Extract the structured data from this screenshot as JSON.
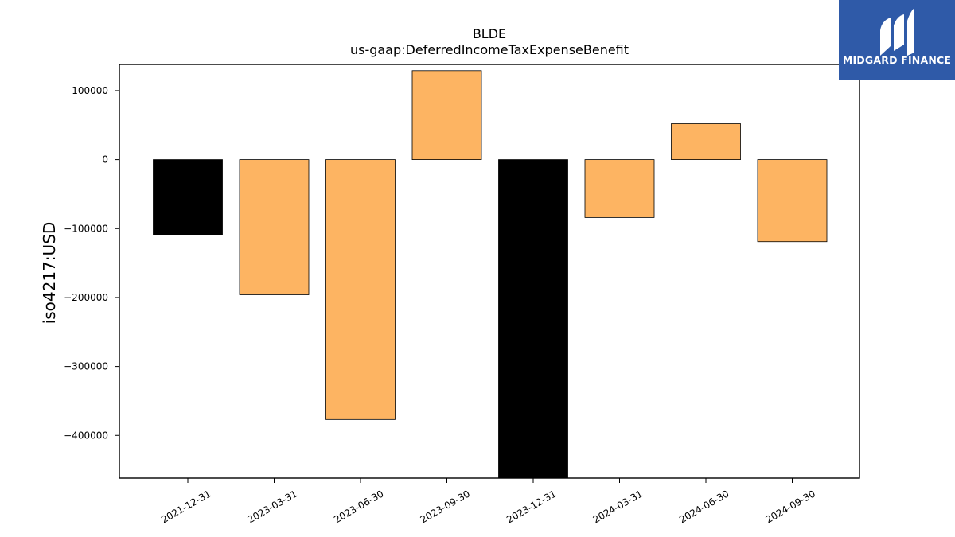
{
  "chart_data": {
    "type": "bar",
    "title": "BLDE",
    "subtitle": "us-gaap:DeferredIncomeTaxExpenseBenefit",
    "xlabel": "",
    "ylabel": "iso4217:USD",
    "categories": [
      "2021-12-31",
      "2023-03-31",
      "2023-06-30",
      "2023-09-30",
      "2023-12-31",
      "2024-03-31",
      "2024-06-30",
      "2024-09-30"
    ],
    "values": [
      -109000,
      -196000,
      -377000,
      129000,
      -465000,
      -84000,
      52000,
      -119000
    ],
    "bar_colors": [
      "#000000",
      "#fdb462",
      "#fdb462",
      "#fdb462",
      "#000000",
      "#fdb462",
      "#fdb462",
      "#fdb462"
    ],
    "yticks": [
      100000,
      0,
      -100000,
      -200000,
      -300000,
      -400000
    ],
    "ytick_labels": [
      "100000",
      "0",
      "−100000",
      "−200000",
      "−300000",
      "−400000"
    ],
    "ylim": [
      -462000,
      138000
    ],
    "grid": false,
    "legend": "none"
  },
  "logo": {
    "text": "MIDGARD FINANCE",
    "background": "#2f5aa8",
    "icon": "midgard-m-icon"
  }
}
